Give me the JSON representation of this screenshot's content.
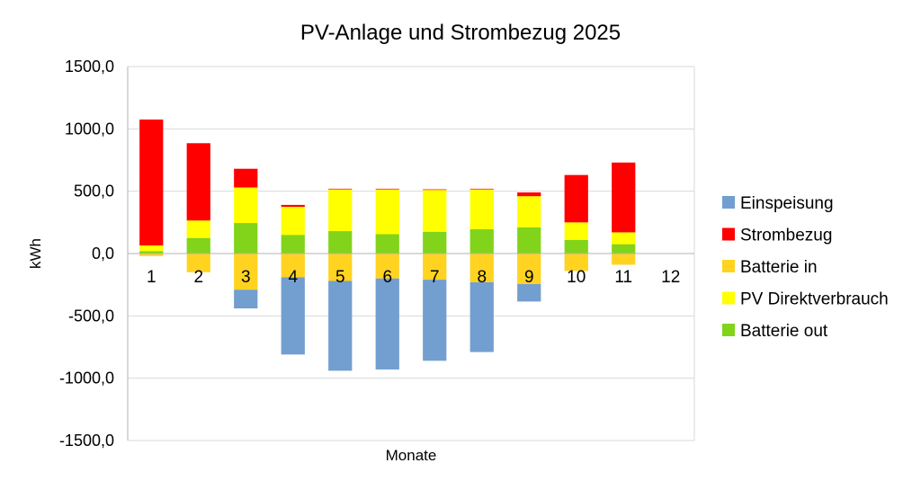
{
  "chart_data": {
    "type": "bar",
    "stacked": true,
    "title": "PV-Anlage und Strombezug 2025",
    "xlabel": "Monate",
    "ylabel": "kWh",
    "ylim": [
      -1500,
      1500
    ],
    "yticks": [
      1500,
      1000,
      500,
      0,
      -500,
      -1000,
      -1500
    ],
    "ytick_labels": [
      "1500,0",
      "1000,0",
      "500,0",
      "0,0",
      "-500,0",
      "-1000,0",
      "-1500,0"
    ],
    "grid": true,
    "legend_position": "right",
    "categories": [
      "1",
      "2",
      "3",
      "4",
      "5",
      "6",
      "7",
      "8",
      "9",
      "10",
      "11",
      "12"
    ],
    "series": [
      {
        "name": "Einspeisung",
        "color": "#729fcf",
        "values": [
          0,
          0,
          -150,
          -620,
          -720,
          -730,
          -650,
          -560,
          -140,
          0,
          0,
          0
        ]
      },
      {
        "name": "Strombezug",
        "color": "#ff0000",
        "values": [
          1010,
          620,
          150,
          15,
          5,
          5,
          5,
          5,
          30,
          380,
          560,
          0
        ]
      },
      {
        "name": "Batterie in",
        "color": "#ffd320",
        "values": [
          -20,
          -150,
          -290,
          -190,
          -220,
          -200,
          -210,
          -230,
          -245,
          -140,
          -90,
          0
        ]
      },
      {
        "name": "PV Direktverbrauch",
        "color": "#ffff00",
        "values": [
          45,
          140,
          285,
          225,
          335,
          360,
          335,
          320,
          250,
          140,
          95,
          0
        ]
      },
      {
        "name": "Batterie out",
        "color": "#81d41a",
        "values": [
          20,
          125,
          245,
          150,
          180,
          155,
          175,
          195,
          210,
          110,
          75,
          0
        ]
      }
    ],
    "legend_order": [
      "Einspeisung",
      "Strombezug",
      "Batterie in",
      "PV Direktverbrauch",
      "Batterie out"
    ]
  }
}
